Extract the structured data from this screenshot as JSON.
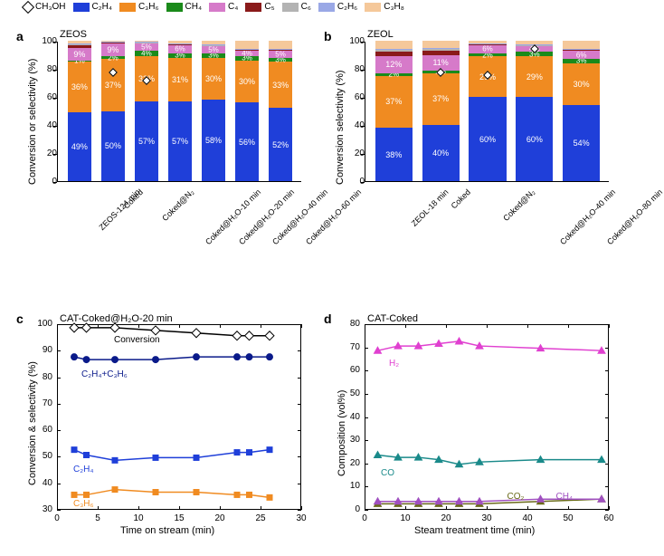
{
  "legend": {
    "items": [
      {
        "label": "CH₃OH",
        "type": "diamond"
      },
      {
        "label": "C₂H₄",
        "color": "#1f3fd9"
      },
      {
        "label": "C₃H₆",
        "color": "#f08b21"
      },
      {
        "label": "CH₄",
        "color": "#1a8a1a"
      },
      {
        "label": "C₄",
        "color": "#d67ac9"
      },
      {
        "label": "C₅",
        "color": "#8a1a1a"
      },
      {
        "label": "C₆",
        "color": "#b3b3b3"
      },
      {
        "label": "C₂H₆",
        "color": "#9aa8e6"
      },
      {
        "label": "C₃H₈",
        "color": "#f5c89a"
      }
    ]
  },
  "panel_a": {
    "label": "a",
    "title": "ZEOS",
    "ylabel": "Conversion or selectivity (%)",
    "ylim": [
      0,
      100
    ],
    "ytick_step": 20,
    "categories": [
      "ZEOS-124 min",
      "Coked",
      "Coked@N₂",
      "Coked@H₂O-10 min",
      "Coked@H₂O-20 min",
      "Coked@H₂O-40 min",
      "Coked@H₂O-60 min"
    ],
    "stacks": [
      [
        {
          "v": 49,
          "t": "49%",
          "c": "#1f3fd9"
        },
        {
          "v": 36,
          "t": "36%",
          "c": "#f08b21"
        },
        {
          "v": 1,
          "t": "1%",
          "c": "#1a8a1a"
        },
        {
          "v": 9,
          "t": "9%",
          "c": "#d67ac9"
        },
        {
          "v": 2,
          "t": "",
          "c": "#8a1a1a"
        },
        {
          "v": 1,
          "t": "",
          "c": "#b3b3b3"
        },
        {
          "v": 0.3,
          "t": "",
          "c": "#9aa8e6"
        },
        {
          "v": 1.7,
          "t": "",
          "c": "#f5c89a"
        }
      ],
      [
        {
          "v": 50,
          "t": "50%",
          "c": "#1f3fd9"
        },
        {
          "v": 37,
          "t": "37%",
          "c": "#f08b21"
        },
        {
          "v": 2,
          "t": "2%",
          "c": "#1a8a1a"
        },
        {
          "v": 9,
          "t": "9%",
          "c": "#d67ac9"
        },
        {
          "v": 1,
          "t": "",
          "c": "#8a1a1a"
        },
        {
          "v": 0.5,
          "t": "",
          "c": "#b3b3b3"
        },
        {
          "v": 0.2,
          "t": "",
          "c": "#9aa8e6"
        },
        {
          "v": 0.3,
          "t": "",
          "c": "#f5c89a"
        }
      ],
      [
        {
          "v": 57,
          "t": "57%",
          "c": "#1f3fd9"
        },
        {
          "v": 32,
          "t": "32%",
          "c": "#f08b21"
        },
        {
          "v": 4,
          "t": "4%",
          "c": "#1a8a1a"
        },
        {
          "v": 5,
          "t": "5%",
          "c": "#d67ac9"
        },
        {
          "v": 0.7,
          "t": "",
          "c": "#8a1a1a"
        },
        {
          "v": 0.3,
          "t": "",
          "c": "#b3b3b3"
        },
        {
          "v": 0.2,
          "t": "",
          "c": "#9aa8e6"
        },
        {
          "v": 0.8,
          "t": "",
          "c": "#f5c89a"
        }
      ],
      [
        {
          "v": 57,
          "t": "57%",
          "c": "#1f3fd9"
        },
        {
          "v": 31,
          "t": "31%",
          "c": "#f08b21"
        },
        {
          "v": 3,
          "t": "3%",
          "c": "#1a8a1a"
        },
        {
          "v": 6,
          "t": "6%",
          "c": "#d67ac9"
        },
        {
          "v": 0.8,
          "t": "",
          "c": "#8a1a1a"
        },
        {
          "v": 0.3,
          "t": "",
          "c": "#b3b3b3"
        },
        {
          "v": 0.2,
          "t": "",
          "c": "#9aa8e6"
        },
        {
          "v": 1.7,
          "t": "",
          "c": "#f5c89a"
        }
      ],
      [
        {
          "v": 58,
          "t": "58%",
          "c": "#1f3fd9"
        },
        {
          "v": 30,
          "t": "30%",
          "c": "#f08b21"
        },
        {
          "v": 3,
          "t": "3%",
          "c": "#1a8a1a"
        },
        {
          "v": 5,
          "t": "5%",
          "c": "#d67ac9"
        },
        {
          "v": 0.8,
          "t": "",
          "c": "#8a1a1a"
        },
        {
          "v": 0.3,
          "t": "",
          "c": "#b3b3b3"
        },
        {
          "v": 0.2,
          "t": "",
          "c": "#9aa8e6"
        },
        {
          "v": 2.7,
          "t": "",
          "c": "#f5c89a"
        }
      ],
      [
        {
          "v": 56,
          "t": "56%",
          "c": "#1f3fd9"
        },
        {
          "v": 30,
          "t": "30%",
          "c": "#f08b21"
        },
        {
          "v": 3,
          "t": "3%",
          "c": "#1a8a1a"
        },
        {
          "v": 4,
          "t": "4%",
          "c": "#d67ac9"
        },
        {
          "v": 0.8,
          "t": "",
          "c": "#8a1a1a"
        },
        {
          "v": 0.3,
          "t": "",
          "c": "#b3b3b3"
        },
        {
          "v": 0.2,
          "t": "",
          "c": "#9aa8e6"
        },
        {
          "v": 5.7,
          "t": "",
          "c": "#f5c89a"
        }
      ],
      [
        {
          "v": 52,
          "t": "52%",
          "c": "#1f3fd9"
        },
        {
          "v": 33,
          "t": "33%",
          "c": "#f08b21"
        },
        {
          "v": 3,
          "t": "3%",
          "c": "#1a8a1a"
        },
        {
          "v": 5,
          "t": "5%",
          "c": "#d67ac9"
        },
        {
          "v": 0.8,
          "t": "",
          "c": "#8a1a1a"
        },
        {
          "v": 0.3,
          "t": "",
          "c": "#b3b3b3"
        },
        {
          "v": 0.2,
          "t": "",
          "c": "#9aa8e6"
        },
        {
          "v": 5.7,
          "t": "",
          "c": "#f5c89a"
        }
      ]
    ],
    "diamonds": [
      null,
      78,
      72,
      null,
      null,
      null,
      null
    ]
  },
  "panel_b": {
    "label": "b",
    "title": "ZEOL",
    "ylabel": "Conversion selectivity (%)",
    "ylim": [
      0,
      100
    ],
    "ytick_step": 20,
    "categories": [
      "ZEOL-18 min",
      "Coked",
      "Coked@N₂",
      "Coked@H₂O-40 min",
      "Coked@H₂O-80 min"
    ],
    "stacks": [
      [
        {
          "v": 38,
          "t": "38%",
          "c": "#1f3fd9"
        },
        {
          "v": 37,
          "t": "37%",
          "c": "#f08b21"
        },
        {
          "v": 2,
          "t": "2%",
          "c": "#1a8a1a"
        },
        {
          "v": 12,
          "t": "12%",
          "c": "#d67ac9"
        },
        {
          "v": 3,
          "t": "",
          "c": "#8a1a1a"
        },
        {
          "v": 2,
          "t": "",
          "c": "#b3b3b3"
        },
        {
          "v": 0.5,
          "t": "",
          "c": "#9aa8e6"
        },
        {
          "v": 5.5,
          "t": "",
          "c": "#f5c89a"
        }
      ],
      [
        {
          "v": 40,
          "t": "40%",
          "c": "#1f3fd9"
        },
        {
          "v": 37,
          "t": "37%",
          "c": "#f08b21"
        },
        {
          "v": 2,
          "t": "2%",
          "c": "#1a8a1a"
        },
        {
          "v": 11,
          "t": "11%",
          "c": "#d67ac9"
        },
        {
          "v": 3,
          "t": "",
          "c": "#8a1a1a"
        },
        {
          "v": 1.5,
          "t": "",
          "c": "#b3b3b3"
        },
        {
          "v": 0.5,
          "t": "",
          "c": "#9aa8e6"
        },
        {
          "v": 5,
          "t": "",
          "c": "#f5c89a"
        }
      ],
      [
        {
          "v": 60,
          "t": "60%",
          "c": "#1f3fd9"
        },
        {
          "v": 29,
          "t": "29%",
          "c": "#f08b21"
        },
        {
          "v": 2,
          "t": "2%",
          "c": "#1a8a1a"
        },
        {
          "v": 6,
          "t": "6%",
          "c": "#d67ac9"
        },
        {
          "v": 0.8,
          "t": "",
          "c": "#8a1a1a"
        },
        {
          "v": 0.3,
          "t": "",
          "c": "#b3b3b3"
        },
        {
          "v": 0.2,
          "t": "",
          "c": "#9aa8e6"
        },
        {
          "v": 1.7,
          "t": "",
          "c": "#f5c89a"
        }
      ],
      [
        {
          "v": 60,
          "t": "60%",
          "c": "#1f3fd9"
        },
        {
          "v": 29,
          "t": "29%",
          "c": "#f08b21"
        },
        {
          "v": 3,
          "t": "3%",
          "c": "#1a8a1a"
        },
        {
          "v": 4,
          "t": "4%",
          "c": "#d67ac9"
        },
        {
          "v": 0.8,
          "t": "",
          "c": "#8a1a1a"
        },
        {
          "v": 0.3,
          "t": "",
          "c": "#b3b3b3"
        },
        {
          "v": 0.2,
          "t": "",
          "c": "#9aa8e6"
        },
        {
          "v": 2.7,
          "t": "",
          "c": "#f5c89a"
        }
      ],
      [
        {
          "v": 54,
          "t": "54%",
          "c": "#1f3fd9"
        },
        {
          "v": 30,
          "t": "30%",
          "c": "#f08b21"
        },
        {
          "v": 3,
          "t": "3%",
          "c": "#1a8a1a"
        },
        {
          "v": 6,
          "t": "6%",
          "c": "#d67ac9"
        },
        {
          "v": 0.8,
          "t": "",
          "c": "#8a1a1a"
        },
        {
          "v": 0.3,
          "t": "",
          "c": "#b3b3b3"
        },
        {
          "v": 0.2,
          "t": "",
          "c": "#9aa8e6"
        },
        {
          "v": 5.7,
          "t": "",
          "c": "#f5c89a"
        }
      ]
    ],
    "diamonds": [
      null,
      78,
      76,
      95,
      null
    ]
  },
  "panel_c": {
    "label": "c",
    "title": "CAT-Coked@H₂O-20 min",
    "xlabel": "Time on stream (min)",
    "ylabel": "Conversion & selectivity (%)",
    "xlim": [
      0,
      30
    ],
    "xtick_step": 5,
    "ylim": [
      30,
      100
    ],
    "ytick_step": 10,
    "series": [
      {
        "name": "Conversion",
        "color": "#000000",
        "marker": "diamond",
        "fill": "#ffffff",
        "pts": [
          [
            2,
            99
          ],
          [
            3.5,
            99
          ],
          [
            7,
            99
          ],
          [
            12,
            98
          ],
          [
            17,
            97
          ],
          [
            22,
            96
          ],
          [
            23.5,
            96
          ],
          [
            26,
            96
          ]
        ]
      },
      {
        "name": "C₂H₄+C₃H₆",
        "color": "#0a1a8a",
        "marker": "circle",
        "fill": "#0a1a8a",
        "pts": [
          [
            2,
            88
          ],
          [
            3.5,
            87
          ],
          [
            7,
            87
          ],
          [
            12,
            87
          ],
          [
            17,
            88
          ],
          [
            22,
            88
          ],
          [
            23.5,
            88
          ],
          [
            26,
            88
          ]
        ]
      },
      {
        "name": "C₂H₄",
        "color": "#1f3fd9",
        "marker": "square",
        "fill": "#1f3fd9",
        "pts": [
          [
            2,
            53
          ],
          [
            3.5,
            51
          ],
          [
            7,
            49
          ],
          [
            12,
            50
          ],
          [
            17,
            50
          ],
          [
            22,
            52
          ],
          [
            23.5,
            52
          ],
          [
            26,
            53
          ]
        ]
      },
      {
        "name": "C₃H₆",
        "color": "#f08b21",
        "marker": "square",
        "fill": "#f08b21",
        "pts": [
          [
            2,
            36
          ],
          [
            3.5,
            36
          ],
          [
            7,
            38
          ],
          [
            12,
            37
          ],
          [
            17,
            37
          ],
          [
            22,
            36
          ],
          [
            23.5,
            36
          ],
          [
            26,
            35
          ]
        ]
      }
    ],
    "series_label_pos": {
      "Conversion": [
        7,
        96
      ],
      "C₂H₄+C₃H₆": [
        3,
        83
      ],
      "C₂H₄": [
        2,
        47
      ],
      "C₃H₆": [
        2,
        34
      ]
    }
  },
  "panel_d": {
    "label": "d",
    "title": "CAT-Coked",
    "xlabel": "Steam treatment time (min)",
    "ylabel": "Composition (vol%)",
    "xlim": [
      0,
      60
    ],
    "xtick_step": 10,
    "ylim": [
      0,
      80
    ],
    "ytick_step": 10,
    "series": [
      {
        "name": "H₂",
        "color": "#e040d0",
        "marker": "triangle",
        "pts": [
          [
            3,
            69
          ],
          [
            8,
            71
          ],
          [
            13,
            71
          ],
          [
            18,
            72
          ],
          [
            23,
            73
          ],
          [
            28,
            71
          ],
          [
            43,
            70
          ],
          [
            58,
            69
          ]
        ]
      },
      {
        "name": "CO",
        "color": "#1a8a8a",
        "marker": "triangle",
        "pts": [
          [
            3,
            24
          ],
          [
            8,
            23
          ],
          [
            13,
            23
          ],
          [
            18,
            22
          ],
          [
            23,
            20
          ],
          [
            28,
            21
          ],
          [
            43,
            22
          ],
          [
            58,
            22
          ]
        ]
      },
      {
        "name": "CO₂",
        "color": "#6a6a1a",
        "marker": "triangle",
        "pts": [
          [
            3,
            3
          ],
          [
            8,
            3
          ],
          [
            13,
            3
          ],
          [
            18,
            3
          ],
          [
            23,
            3
          ],
          [
            28,
            3
          ],
          [
            43,
            4
          ],
          [
            58,
            5
          ]
        ]
      },
      {
        "name": "CH₄",
        "color": "#a050c0",
        "marker": "triangle",
        "pts": [
          [
            3,
            4
          ],
          [
            8,
            4
          ],
          [
            13,
            4
          ],
          [
            18,
            4
          ],
          [
            23,
            4
          ],
          [
            28,
            4
          ],
          [
            43,
            5
          ],
          [
            58,
            5
          ]
        ]
      }
    ],
    "series_label_pos": {
      "H₂": [
        6,
        65
      ],
      "CO": [
        4,
        18
      ],
      "CO₂": [
        35,
        8
      ],
      "CH₄": [
        47,
        8
      ]
    }
  }
}
